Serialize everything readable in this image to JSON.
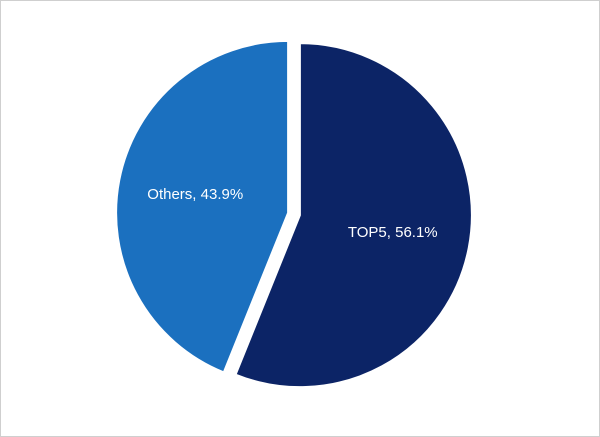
{
  "chart_data": {
    "type": "pie",
    "values": [
      56.1,
      43.9
    ],
    "value_labels": [
      "TOP5, 56.1%",
      "Others, 43.9%"
    ],
    "colors": [
      "#0c2466",
      "#1b70bf"
    ]
  }
}
